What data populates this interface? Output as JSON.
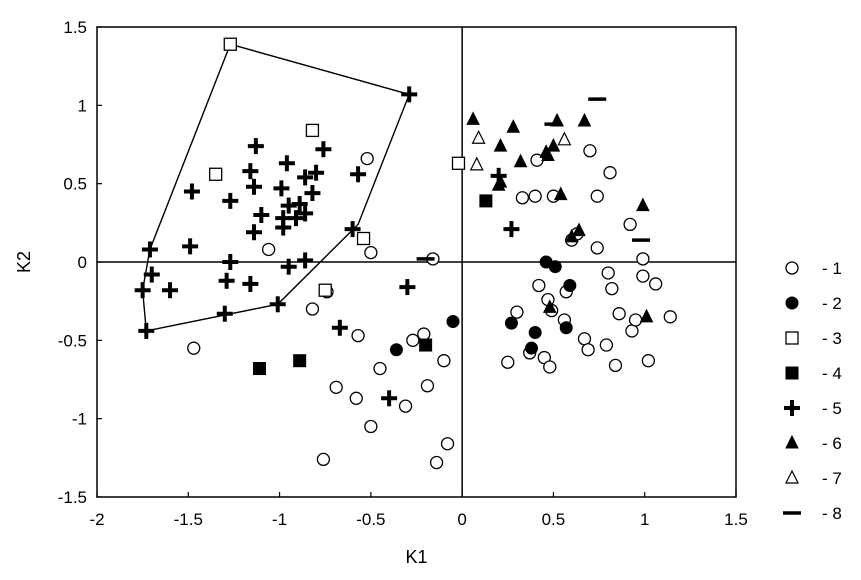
{
  "chart_data": {
    "type": "scatter",
    "title": "",
    "xlabel": "K1",
    "ylabel": "K2",
    "xlim": [
      -2,
      1.5
    ],
    "ylim": [
      -1.5,
      1.5
    ],
    "xticks": [
      "-2",
      "-1.5",
      "-1",
      "-0.5",
      "0",
      "0.5",
      "1",
      "1.5"
    ],
    "yticks": [
      "1.5",
      "1",
      "0.5",
      "0",
      "-0.5",
      "-1",
      "-1.5"
    ],
    "xtick_values": [
      -2,
      -1.5,
      -1,
      -0.5,
      0,
      0.5,
      1,
      1.5
    ],
    "ytick_values": [
      1.5,
      1,
      0.5,
      0,
      -0.5,
      -1,
      -1.5
    ],
    "reference_lines": {
      "x": 0,
      "y": 0
    },
    "grid": false,
    "legend_position": "right",
    "series": [
      {
        "name": "- 1",
        "marker": "circle-open",
        "points": [
          [
            -1.47,
            -0.55
          ],
          [
            -1.06,
            0.08
          ],
          [
            -0.82,
            -0.3
          ],
          [
            -0.74,
            -0.19
          ],
          [
            -0.52,
            0.66
          ],
          [
            -0.5,
            0.06
          ],
          [
            -0.57,
            -0.47
          ],
          [
            -0.69,
            -0.8
          ],
          [
            -0.58,
            -0.87
          ],
          [
            -0.5,
            -1.05
          ],
          [
            -0.45,
            -0.68
          ],
          [
            -0.31,
            -0.92
          ],
          [
            -0.27,
            -0.5
          ],
          [
            -0.21,
            -0.46
          ],
          [
            -0.19,
            -0.79
          ],
          [
            -0.16,
            0.02
          ],
          [
            -0.14,
            -1.28
          ],
          [
            -0.1,
            -0.63
          ],
          [
            -0.08,
            -1.16
          ],
          [
            -0.76,
            -1.26
          ],
          [
            0.25,
            -0.64
          ],
          [
            0.3,
            -0.32
          ],
          [
            0.33,
            0.41
          ],
          [
            0.37,
            -0.58
          ],
          [
            0.4,
            0.42
          ],
          [
            0.41,
            0.65
          ],
          [
            0.42,
            -0.15
          ],
          [
            0.45,
            -0.61
          ],
          [
            0.47,
            -0.24
          ],
          [
            0.48,
            -0.67
          ],
          [
            0.49,
            -0.31
          ],
          [
            0.5,
            0.42
          ],
          [
            0.56,
            -0.37
          ],
          [
            0.57,
            -0.19
          ],
          [
            0.6,
            0.14
          ],
          [
            0.63,
            0.18
          ],
          [
            0.67,
            -0.49
          ],
          [
            0.7,
            0.71
          ],
          [
            0.69,
            -0.56
          ],
          [
            0.74,
            0.42
          ],
          [
            0.74,
            0.09
          ],
          [
            0.79,
            -0.53
          ],
          [
            0.8,
            -0.07
          ],
          [
            0.81,
            0.57
          ],
          [
            0.82,
            -0.17
          ],
          [
            0.84,
            -0.66
          ],
          [
            0.86,
            -0.33
          ],
          [
            0.92,
            0.24
          ],
          [
            0.93,
            -0.44
          ],
          [
            0.95,
            -0.37
          ],
          [
            0.99,
            0.02
          ],
          [
            0.99,
            -0.09
          ],
          [
            1.02,
            -0.63
          ],
          [
            1.06,
            -0.14
          ],
          [
            1.14,
            -0.35
          ]
        ]
      },
      {
        "name": "- 2",
        "marker": "circle-filled",
        "points": [
          [
            -0.36,
            -0.56
          ],
          [
            -0.05,
            -0.38
          ],
          [
            0.27,
            -0.39
          ],
          [
            0.38,
            -0.55
          ],
          [
            0.4,
            -0.45
          ],
          [
            0.46,
            0.0
          ],
          [
            0.51,
            -0.03
          ],
          [
            0.57,
            -0.42
          ],
          [
            0.59,
            -0.15
          ]
        ]
      },
      {
        "name": "- 3",
        "marker": "square-open",
        "points": [
          [
            -1.27,
            1.39
          ],
          [
            -0.82,
            0.84
          ],
          [
            -1.35,
            0.56
          ],
          [
            -0.54,
            0.15
          ],
          [
            -0.75,
            -0.18
          ],
          [
            -0.02,
            0.63
          ]
        ]
      },
      {
        "name": "- 4",
        "marker": "square-filled",
        "points": [
          [
            -1.11,
            -0.68
          ],
          [
            -0.89,
            -0.63
          ],
          [
            -0.2,
            -0.53
          ],
          [
            0.13,
            0.39
          ]
        ]
      },
      {
        "name": "- 5",
        "marker": "plus",
        "points": [
          [
            -0.29,
            1.07
          ],
          [
            -0.76,
            0.72
          ],
          [
            -1.13,
            0.74
          ],
          [
            -0.96,
            0.63
          ],
          [
            -1.16,
            0.58
          ],
          [
            -0.8,
            0.57
          ],
          [
            -0.86,
            0.54
          ],
          [
            -0.57,
            0.56
          ],
          [
            -1.14,
            0.48
          ],
          [
            -0.99,
            0.47
          ],
          [
            -0.82,
            0.44
          ],
          [
            -1.48,
            0.45
          ],
          [
            -1.27,
            0.39
          ],
          [
            -0.95,
            0.36
          ],
          [
            -0.89,
            0.37
          ],
          [
            -0.86,
            0.31
          ],
          [
            -1.1,
            0.3
          ],
          [
            -0.98,
            0.28
          ],
          [
            -0.91,
            0.28
          ],
          [
            -0.98,
            0.22
          ],
          [
            -1.14,
            0.19
          ],
          [
            -0.6,
            0.21
          ],
          [
            -1.49,
            0.1
          ],
          [
            -1.71,
            0.08
          ],
          [
            -1.27,
            0.0
          ],
          [
            -0.95,
            -0.03
          ],
          [
            -0.86,
            0.01
          ],
          [
            -1.7,
            -0.08
          ],
          [
            -1.6,
            -0.18
          ],
          [
            -1.75,
            -0.18
          ],
          [
            -1.29,
            -0.12
          ],
          [
            -1.16,
            -0.14
          ],
          [
            -1.01,
            -0.27
          ],
          [
            -1.3,
            -0.33
          ],
          [
            -1.73,
            -0.44
          ],
          [
            -0.67,
            -0.42
          ],
          [
            -0.3,
            -0.16
          ],
          [
            -0.4,
            -0.87
          ],
          [
            0.2,
            0.55
          ],
          [
            0.27,
            0.21
          ]
        ]
      },
      {
        "name": "- 6",
        "marker": "triangle-filled",
        "points": [
          [
            0.06,
            0.91
          ],
          [
            0.28,
            0.86
          ],
          [
            0.21,
            0.74
          ],
          [
            0.52,
            0.9
          ],
          [
            0.5,
            0.74
          ],
          [
            0.67,
            0.9
          ],
          [
            0.32,
            0.64
          ],
          [
            0.47,
            0.68
          ],
          [
            0.54,
            0.43
          ],
          [
            0.21,
            0.51
          ],
          [
            0.2,
            0.49
          ],
          [
            0.46,
            0.7
          ],
          [
            0.6,
            0.16
          ],
          [
            0.64,
            0.2
          ],
          [
            0.99,
            0.36
          ],
          [
            0.48,
            -0.29
          ],
          [
            1.01,
            -0.35
          ]
        ]
      },
      {
        "name": "- 7",
        "marker": "triangle-open",
        "points": [
          [
            0.09,
            0.79
          ],
          [
            0.08,
            0.62
          ],
          [
            0.56,
            0.78
          ]
        ]
      },
      {
        "name": "- 8",
        "marker": "dash",
        "points": [
          [
            0.74,
            1.04
          ],
          [
            0.5,
            0.88
          ],
          [
            0.98,
            0.14
          ],
          [
            -0.2,
            0.02
          ]
        ]
      }
    ],
    "polygon": [
      [
        -1.27,
        1.39
      ],
      [
        -0.29,
        1.07
      ],
      [
        -0.57,
        0.24
      ],
      [
        -1.01,
        -0.27
      ],
      [
        -1.73,
        -0.44
      ],
      [
        -1.75,
        -0.18
      ],
      [
        -1.71,
        0.08
      ]
    ]
  }
}
